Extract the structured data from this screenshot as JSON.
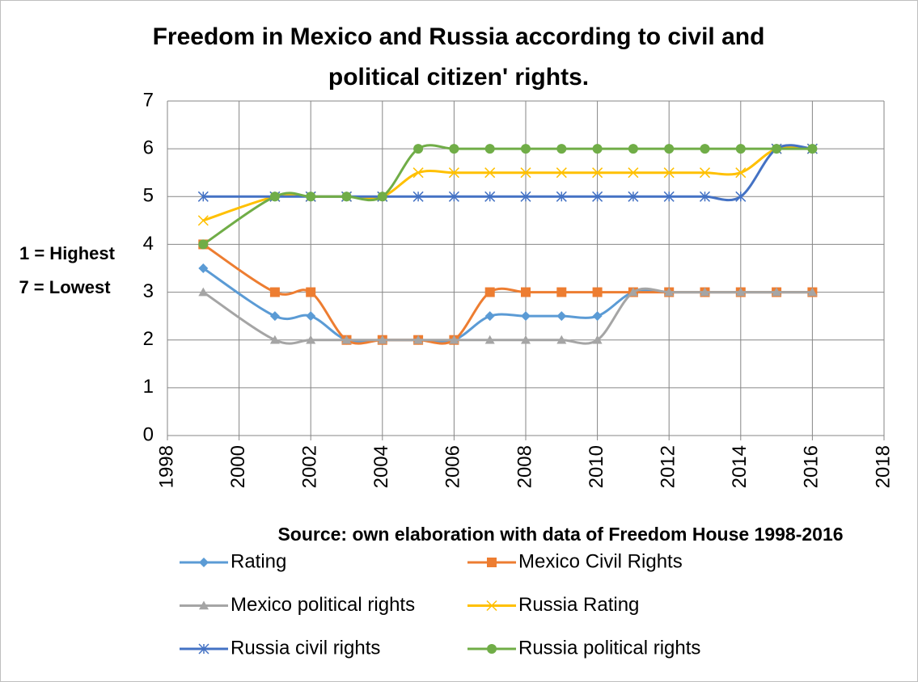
{
  "chart_data": {
    "type": "line",
    "title": [
      "Freedom in Mexico and Russia according to civil and",
      "political citizen' rights."
    ],
    "ylabel": [
      "1 = Highest",
      "7 = Lowest"
    ],
    "annotation": "Source: own elaboration with data of Freedom House 1998-2016",
    "x": [
      1999,
      2001,
      2002,
      2003,
      2004,
      2005,
      2006,
      2007,
      2008,
      2009,
      2010,
      2011,
      2012,
      2013,
      2014,
      2015,
      2016
    ],
    "series": [
      {
        "name": "Rating",
        "color": "#5b9bd5",
        "marker": "diamond",
        "values": [
          3.5,
          2.5,
          2.5,
          2,
          2,
          2,
          2,
          2.5,
          2.5,
          2.5,
          2.5,
          3,
          3,
          3,
          3,
          3,
          3
        ]
      },
      {
        "name": "Mexico Civil Rights",
        "color": "#ed7d31",
        "marker": "square",
        "values": [
          4,
          3,
          3,
          2,
          2,
          2,
          2,
          3,
          3,
          3,
          3,
          3,
          3,
          3,
          3,
          3,
          3
        ]
      },
      {
        "name": "Mexico political rights",
        "color": "#a5a5a5",
        "marker": "triangle",
        "values": [
          3,
          2,
          2,
          2,
          2,
          2,
          2,
          2,
          2,
          2,
          2,
          3,
          3,
          3,
          3,
          3,
          3
        ]
      },
      {
        "name": "Russia Rating",
        "color": "#ffc000",
        "marker": "x",
        "values": [
          4.5,
          5,
          5,
          5,
          5,
          5.5,
          5.5,
          5.5,
          5.5,
          5.5,
          5.5,
          5.5,
          5.5,
          5.5,
          5.5,
          6,
          6
        ]
      },
      {
        "name": "Russia civil rights",
        "color": "#4472c4",
        "marker": "star",
        "values": [
          5,
          5,
          5,
          5,
          5,
          5,
          5,
          5,
          5,
          5,
          5,
          5,
          5,
          5,
          5,
          6,
          6
        ]
      },
      {
        "name": "Russia political rights",
        "color": "#70ad47",
        "marker": "circle",
        "values": [
          4,
          5,
          5,
          5,
          5,
          6,
          6,
          6,
          6,
          6,
          6,
          6,
          6,
          6,
          6,
          6,
          6
        ]
      }
    ],
    "xlim": [
      1998,
      2018
    ],
    "xticks": [
      1998,
      2000,
      2002,
      2004,
      2006,
      2008,
      2010,
      2012,
      2014,
      2016,
      2018
    ],
    "ylim": [
      0,
      7
    ],
    "yticks": [
      0,
      1,
      2,
      3,
      4,
      5,
      6,
      7
    ],
    "grid": true,
    "smooth": true,
    "legend": "bottom"
  }
}
